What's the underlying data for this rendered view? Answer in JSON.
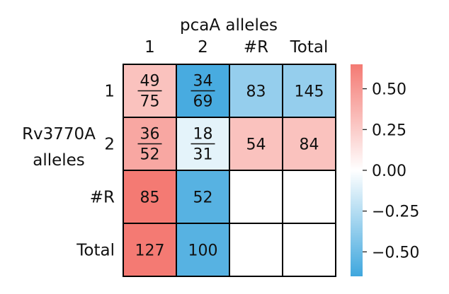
{
  "chart_data": {
    "type": "heatmap",
    "col_title": "pcaA alleles",
    "row_title_line1": "Rv3770A",
    "row_title_line2": "alleles",
    "col_labels": [
      "1",
      "2",
      "#R",
      "Total"
    ],
    "row_labels": [
      "1",
      "2",
      "#R",
      "Total"
    ],
    "cells": [
      [
        {
          "num": "49",
          "den": "75",
          "color": 0.3
        },
        {
          "num": "34",
          "den": "69",
          "color": -0.62
        },
        {
          "text": "83",
          "color": -0.36
        },
        {
          "text": "145",
          "color": -0.36
        }
      ],
      [
        {
          "num": "36",
          "den": "52",
          "color": 0.43
        },
        {
          "num": "18",
          "den": "31",
          "color": -0.09
        },
        {
          "text": "54",
          "color": 0.3
        },
        {
          "text": "84",
          "color": 0.3
        }
      ],
      [
        {
          "text": "85",
          "color": 0.65
        },
        {
          "text": "52",
          "color": -0.57
        },
        {
          "text": "",
          "color": null
        },
        {
          "text": "",
          "color": null
        }
      ],
      [
        {
          "text": "127",
          "color": 0.65
        },
        {
          "text": "100",
          "color": -0.57
        },
        {
          "text": "",
          "color": null
        },
        {
          "text": "",
          "color": null
        }
      ]
    ],
    "colorbar": {
      "range": [
        -0.65,
        0.65
      ],
      "ticks": [
        0.5,
        0.25,
        0.0,
        -0.25,
        -0.5
      ],
      "tick_labels": [
        "0.50",
        "0.25",
        "0.00",
        "−0.25",
        "−0.50"
      ],
      "colors": {
        "negative": "#3fa7de",
        "zero": "#ffffff",
        "positive": "#f47a73"
      }
    }
  }
}
